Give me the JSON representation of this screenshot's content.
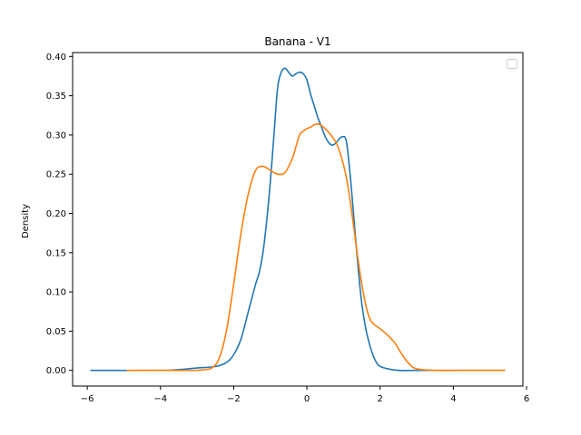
{
  "chart_data": {
    "type": "line",
    "title": "Banana - V1",
    "xlabel": "",
    "ylabel": "Density",
    "xlim": [
      -6.4,
      5.9
    ],
    "ylim": [
      -0.02,
      0.405
    ],
    "xticks": [
      -6,
      -4,
      -2,
      0,
      2,
      4,
      6
    ],
    "xtick_labels": [
      "−6",
      "−4",
      "−2",
      "0",
      "2",
      "4",
      "6"
    ],
    "yticks": [
      0.0,
      0.05,
      0.1,
      0.15,
      0.2,
      0.25,
      0.3,
      0.35,
      0.4
    ],
    "ytick_labels": [
      "0.00",
      "0.05",
      "0.10",
      "0.15",
      "0.20",
      "0.25",
      "0.30",
      "0.35",
      "0.40"
    ],
    "grid": false,
    "legend": {
      "placement": "top-right",
      "entries": []
    },
    "series": [
      {
        "color": "#1f77b4",
        "x": [
          -5.9,
          -4.0,
          -3.5,
          -3.0,
          -2.5,
          -2.2,
          -2.0,
          -1.8,
          -1.6,
          -1.4,
          -1.3,
          -1.2,
          -1.1,
          -1.0,
          -0.9,
          -0.8,
          -0.7,
          -0.6,
          -0.5,
          -0.4,
          -0.3,
          -0.2,
          -0.1,
          0.0,
          0.1,
          0.2,
          0.3,
          0.4,
          0.5,
          0.6,
          0.7,
          0.8,
          0.9,
          1.0,
          1.05,
          1.1,
          1.2,
          1.3,
          1.4,
          1.5,
          1.6,
          1.7,
          1.8,
          1.9,
          2.0,
          2.2,
          2.5,
          3.0,
          3.5,
          4.0,
          5.4
        ],
        "y": [
          0.0,
          0.0,
          0.001,
          0.003,
          0.005,
          0.01,
          0.02,
          0.04,
          0.075,
          0.11,
          0.125,
          0.15,
          0.19,
          0.24,
          0.3,
          0.36,
          0.38,
          0.385,
          0.38,
          0.375,
          0.378,
          0.38,
          0.378,
          0.37,
          0.352,
          0.337,
          0.322,
          0.31,
          0.298,
          0.29,
          0.287,
          0.29,
          0.296,
          0.298,
          0.296,
          0.285,
          0.24,
          0.185,
          0.13,
          0.085,
          0.055,
          0.035,
          0.02,
          0.01,
          0.005,
          0.002,
          0.0,
          0.0,
          0.0,
          0.0,
          0.0
        ]
      },
      {
        "color": "#ff7f0e",
        "x": [
          -4.9,
          -3.5,
          -3.0,
          -2.8,
          -2.6,
          -2.4,
          -2.2,
          -2.0,
          -1.8,
          -1.6,
          -1.4,
          -1.2,
          -1.0,
          -0.8,
          -0.6,
          -0.4,
          -0.3,
          -0.2,
          -0.1,
          0.0,
          0.1,
          0.2,
          0.3,
          0.4,
          0.5,
          0.6,
          0.7,
          0.8,
          0.9,
          1.0,
          1.1,
          1.2,
          1.3,
          1.4,
          1.5,
          1.6,
          1.7,
          1.8,
          2.0,
          2.2,
          2.4,
          2.6,
          2.8,
          3.0,
          3.5,
          4.5,
          5.4
        ],
        "y": [
          0.0,
          0.0,
          0.0,
          0.001,
          0.003,
          0.015,
          0.05,
          0.11,
          0.175,
          0.225,
          0.255,
          0.26,
          0.255,
          0.25,
          0.252,
          0.27,
          0.285,
          0.3,
          0.305,
          0.308,
          0.31,
          0.313,
          0.314,
          0.312,
          0.308,
          0.303,
          0.297,
          0.29,
          0.278,
          0.262,
          0.24,
          0.21,
          0.175,
          0.14,
          0.11,
          0.085,
          0.068,
          0.06,
          0.053,
          0.045,
          0.035,
          0.02,
          0.008,
          0.002,
          0.0,
          0.0,
          0.0
        ]
      }
    ]
  }
}
